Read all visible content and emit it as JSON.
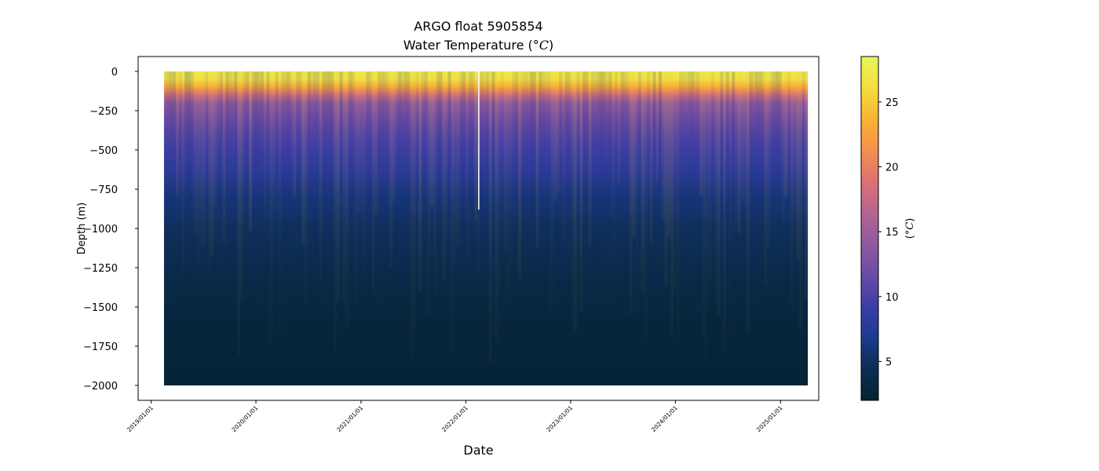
{
  "chart_data": {
    "type": "heatmap",
    "title": "ARGO float 5905854",
    "subtitle_prefix": "Water Temperature (",
    "subtitle_unit": "°C",
    "subtitle_suffix": ")",
    "xlabel": "Date",
    "ylabel": "Depth (m)",
    "x_tick_labels": [
      "2019/01/01",
      "2020/01/01",
      "2021/01/01",
      "2022/01/01",
      "2023/01/01",
      "2024/01/01",
      "2025/01/01"
    ],
    "y_ticks": [
      0,
      -250,
      -500,
      -750,
      -1000,
      -1250,
      -1500,
      -1750,
      -2000
    ],
    "y_tick_labels": [
      "0",
      "−250",
      "−500",
      "−750",
      "−1000",
      "−1250",
      "−1500",
      "−1750",
      "−2000"
    ],
    "xlim": [
      "2018/11/17",
      "2025/05/14"
    ],
    "ylim": [
      -2095,
      95
    ],
    "data_x_range": [
      "2019/02/15",
      "2025/04/06"
    ],
    "data_depth_range": [
      0,
      -2000
    ],
    "data_gap": {
      "date": "2022/02/15",
      "depth_range": [
        0,
        -880
      ]
    },
    "profile_depths": [
      0,
      -50,
      -100,
      -150,
      -200,
      -300,
      -400,
      -500,
      -600,
      -800,
      -1000,
      -1300,
      -1600,
      -2000
    ],
    "profile_temperatures": [
      27.5,
      26.5,
      23,
      18,
      14,
      12,
      10.5,
      9.5,
      8.5,
      6,
      4.8,
      3.6,
      2.8,
      2.2
    ],
    "colorbar": {
      "label_prefix": "(",
      "label_unit": "°C",
      "label_suffix": ")",
      "range": [
        2,
        28.5
      ],
      "ticks": [
        5,
        10,
        15,
        20,
        25
      ],
      "tick_labels": [
        "5",
        "10",
        "15",
        "20",
        "25"
      ],
      "colormap": "thermal",
      "colors": [
        "#042333",
        "#0c2d52",
        "#1c3a8e",
        "#3b3fa6",
        "#6a4aa8",
        "#8f5aa0",
        "#b5658f",
        "#dc7173",
        "#f68f4e",
        "#fbb234",
        "#f5df3e",
        "#e9f55a"
      ]
    }
  }
}
